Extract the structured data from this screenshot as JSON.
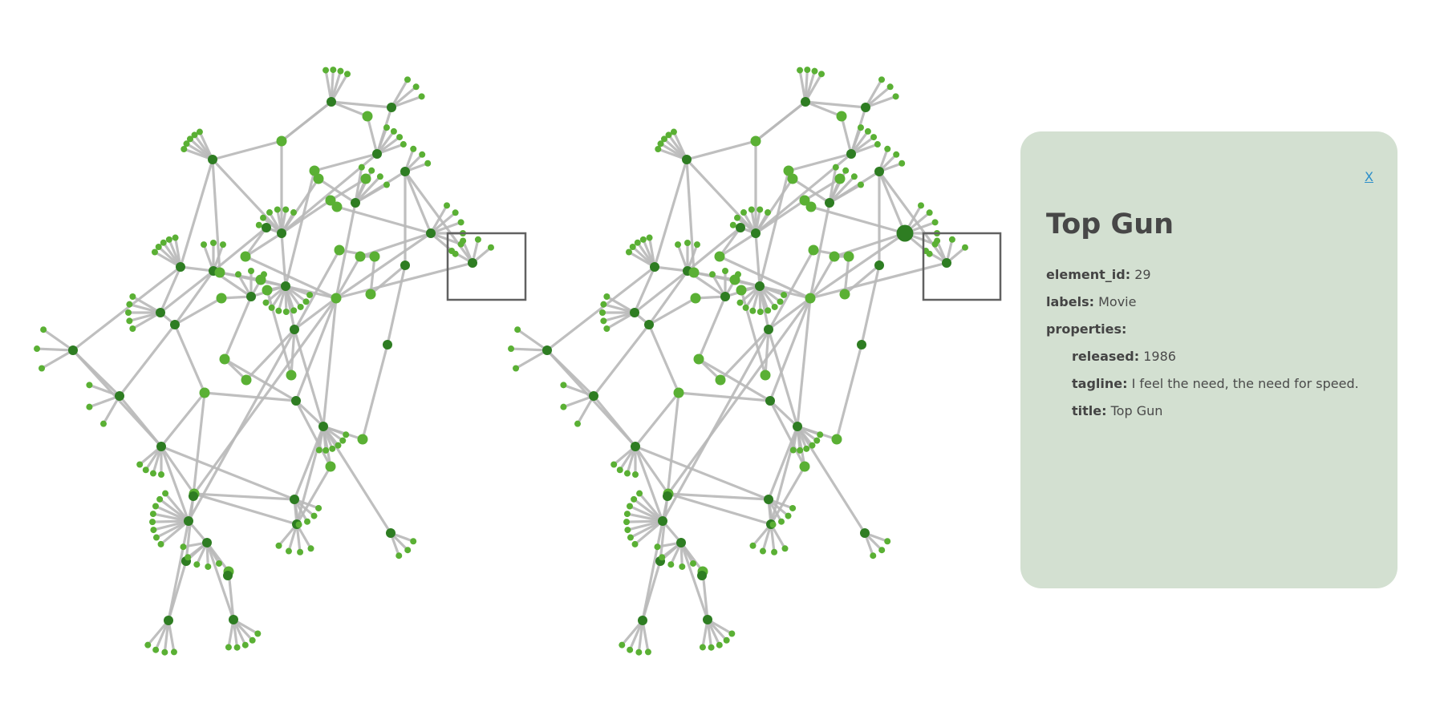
{
  "graph": {
    "node_color_dark": "#2e7d22",
    "node_color_light": "#5ab034",
    "edge_color": "#b9b9b9",
    "selected_node": "Top Gun"
  },
  "details": {
    "close_label": "X",
    "title": "Top Gun",
    "element_id_label": "element_id:",
    "element_id": "29",
    "labels_label": "labels:",
    "labels": "Movie",
    "properties_label": "properties:",
    "released_label": "released:",
    "released": "1986",
    "tagline_label": "tagline:",
    "tagline": "I feel the need, the need for speed.",
    "title_label": "title:",
    "title_value": "Top Gun"
  }
}
